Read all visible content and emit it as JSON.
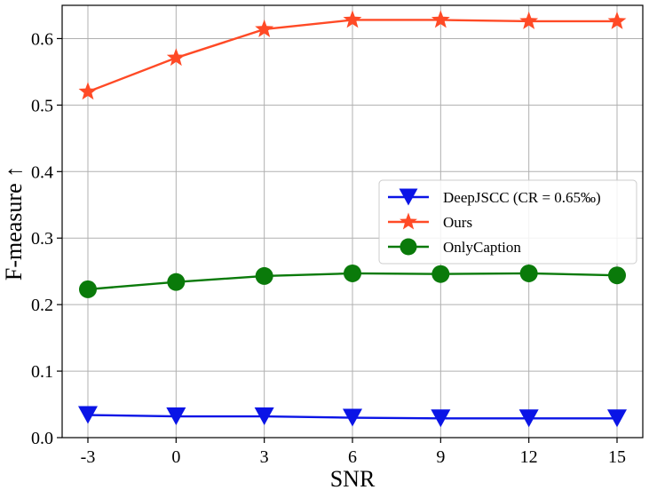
{
  "chart_data": {
    "type": "line",
    "xlabel": "SNR",
    "ylabel": "F-measure ↑",
    "x": [
      -3,
      0,
      3,
      6,
      9,
      12,
      15
    ],
    "x_tick_labels": [
      "-3",
      "0",
      "3",
      "6",
      "9",
      "12",
      "15"
    ],
    "ylim": [
      0.0,
      0.65
    ],
    "y_ticks": [
      0.0,
      0.1,
      0.2,
      0.3,
      0.4,
      0.5,
      0.6
    ],
    "y_tick_labels": [
      "0.0",
      "0.1",
      "0.2",
      "0.3",
      "0.4",
      "0.5",
      "0.6"
    ],
    "grid": true,
    "legend_position": "center-right",
    "series": [
      {
        "name": "DeepJSCC (CR = 0.65‰)",
        "color": "#0a14e6",
        "marker": "triangle-down",
        "values": [
          0.034,
          0.032,
          0.032,
          0.03,
          0.029,
          0.029,
          0.029
        ]
      },
      {
        "name": "Ours",
        "color": "#ff4a26",
        "marker": "star",
        "values": [
          0.52,
          0.571,
          0.614,
          0.628,
          0.628,
          0.626,
          0.626
        ]
      },
      {
        "name": "OnlyCaption",
        "color": "#0a7a0a",
        "marker": "circle",
        "values": [
          0.223,
          0.234,
          0.243,
          0.247,
          0.246,
          0.247,
          0.244
        ]
      }
    ]
  }
}
